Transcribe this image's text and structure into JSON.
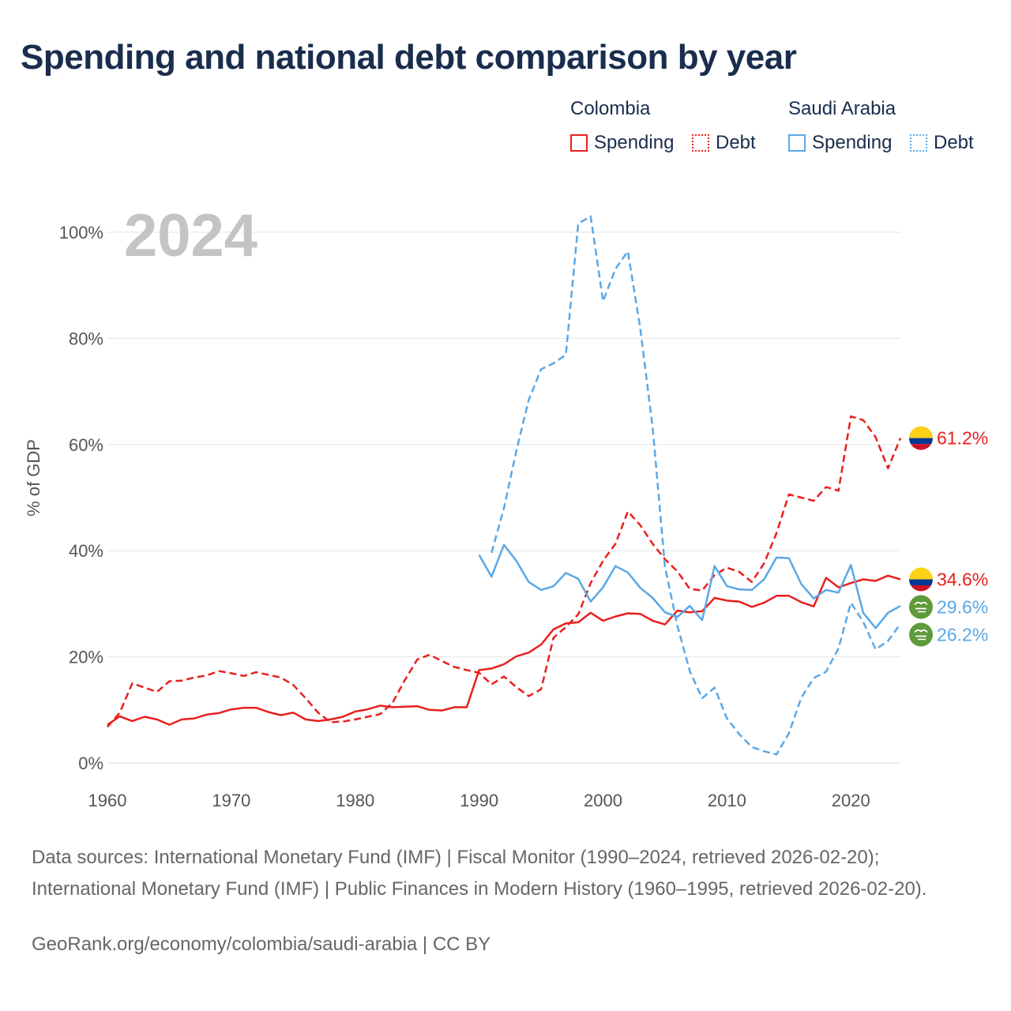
{
  "header": {
    "title": "Spending and national debt comparison by year"
  },
  "legend": {
    "groups": [
      {
        "name": "Colombia",
        "color": "#e8201e",
        "spending_label": "Spending",
        "debt_label": "Debt"
      },
      {
        "name": "Saudi Arabia",
        "color": "#5ba8e6",
        "spending_label": "Spending",
        "debt_label": "Debt"
      }
    ]
  },
  "chart_data": {
    "type": "line",
    "title": "Spending and national debt comparison by year",
    "year_label": "2024",
    "xlabel": "",
    "ylabel": "% of GDP",
    "xlim": [
      1960,
      2024
    ],
    "ylim": [
      0,
      100
    ],
    "x_ticks": [
      "1960",
      "1970",
      "1980",
      "1990",
      "2000",
      "2010",
      "2020"
    ],
    "y_ticks": [
      "0%",
      "20%",
      "40%",
      "60%",
      "80%",
      "100%"
    ],
    "series": [
      {
        "name": "Colombia Spending",
        "country": "Colombia",
        "flag": "colombia",
        "style": "solid",
        "color": "#e8201e",
        "end_label": "34.6%",
        "start_year": 1960,
        "values": [
          7.2,
          8.8,
          7.9,
          8.7,
          8.2,
          7.2,
          8.2,
          8.4,
          9.1,
          9.4,
          10.1,
          10.4,
          10.4,
          9.6,
          9.0,
          9.5,
          8.2,
          7.9,
          8.2,
          8.7,
          9.7,
          10.1,
          10.8,
          10.5,
          10.6,
          10.7,
          10.0,
          9.9,
          10.5,
          10.5,
          17.5,
          17.8,
          18.6,
          20.1,
          20.8,
          22.3,
          25.2,
          26.3,
          26.5,
          28.3,
          26.8,
          27.6,
          28.2,
          28.1,
          26.8,
          26.1,
          28.7,
          28.4,
          28.6,
          31.1,
          30.6,
          30.4,
          29.4,
          30.2,
          31.5,
          31.5,
          30.3,
          29.5,
          34.9,
          33.1,
          33.9,
          34.6,
          34.3,
          35.3,
          34.6
        ]
      },
      {
        "name": "Colombia Debt",
        "country": "Colombia",
        "flag": "colombia",
        "style": "dashed",
        "color": "#e8201e",
        "end_label": "61.2%",
        "start_year": 1960,
        "values": [
          6.8,
          9.5,
          15.0,
          14.2,
          13.4,
          15.4,
          15.5,
          16.1,
          16.5,
          17.3,
          16.9,
          16.4,
          17.1,
          16.6,
          16.1,
          14.7,
          12.2,
          9.5,
          7.7,
          7.8,
          8.2,
          8.7,
          9.2,
          11.3,
          15.6,
          19.5,
          20.4,
          19.2,
          18.1,
          17.5,
          17.0,
          14.8,
          16.3,
          14.3,
          12.6,
          13.9,
          23.6,
          25.6,
          28.0,
          33.9,
          38.1,
          41.3,
          47.4,
          44.8,
          41.3,
          38.4,
          36.1,
          32.8,
          32.5,
          35.4,
          36.8,
          36.0,
          34.1,
          37.6,
          43.3,
          50.6,
          50.0,
          49.4,
          52.0,
          51.3,
          65.3,
          64.6,
          61.4,
          55.5,
          61.2
        ]
      },
      {
        "name": "Saudi Arabia Spending",
        "country": "Saudi Arabia",
        "flag": "saudi-arabia",
        "style": "solid",
        "color": "#5ba8e6",
        "end_label": "29.6%",
        "start_year": 1990,
        "values": [
          39.2,
          35.1,
          41.1,
          38.1,
          34.1,
          32.6,
          33.3,
          35.8,
          34.7,
          30.4,
          33.1,
          37.1,
          35.9,
          33.0,
          31.1,
          28.4,
          27.5,
          29.6,
          26.9,
          37.1,
          33.3,
          32.7,
          32.6,
          34.6,
          38.7,
          38.6,
          33.7,
          31.0,
          32.6,
          32.1,
          37.3,
          28.3,
          25.4,
          28.3,
          29.6
        ]
      },
      {
        "name": "Saudi Arabia Debt",
        "country": "Saudi Arabia",
        "flag": "saudi-arabia",
        "style": "dashed",
        "color": "#5ba8e6",
        "end_label": "26.2%",
        "start_year": 1991,
        "values": [
          39.6,
          48.0,
          58.8,
          68.4,
          74.2,
          75.3,
          76.9,
          101.6,
          103.0,
          87.0,
          93.1,
          96.4,
          81.9,
          63.2,
          37.0,
          25.9,
          17.3,
          12.2,
          14.2,
          8.4,
          5.4,
          3.0,
          2.2,
          1.6,
          5.6,
          12.3,
          16.0,
          17.2,
          21.6,
          30.2,
          26.6,
          21.4,
          23.0,
          26.2
        ]
      }
    ]
  },
  "footer": {
    "source_text": "Data sources: International Monetary Fund (IMF) | Fiscal Monitor (1990–2024, retrieved 2026-02-20); International Monetary Fund (IMF) | Public Finances in Modern History (1960–1995, retrieved 2026-02-20).",
    "attribution": "GeoRank.org/economy/colombia/saudi-arabia | CC BY"
  }
}
